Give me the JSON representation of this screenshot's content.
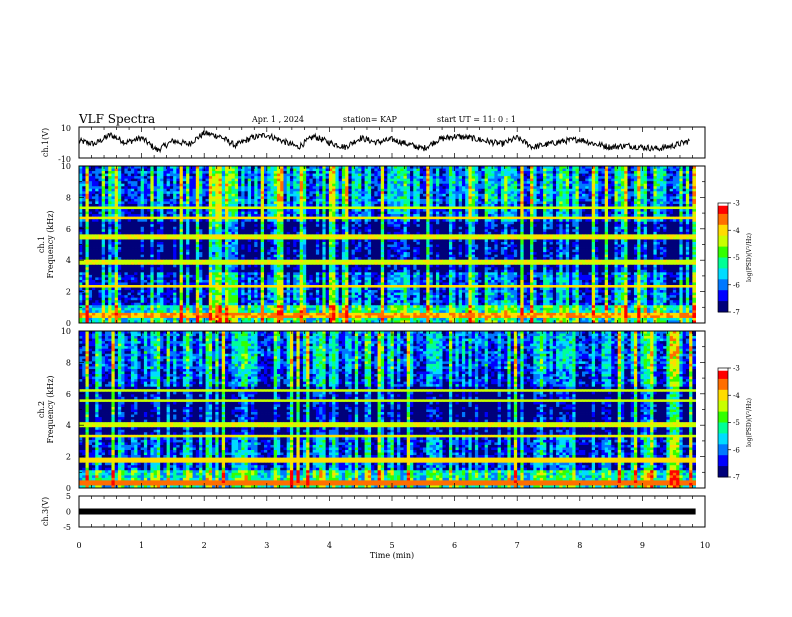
{
  "header": {
    "title": "VLF Spectra",
    "date": "Apr. 1  , 2024",
    "station": "station= KAP",
    "start": "start  UT =   11: 0  : 1"
  },
  "colors": {
    "line": "#000000",
    "colormap": [
      "#00007a",
      "#0000ff",
      "#0078ff",
      "#00dcff",
      "#00ff96",
      "#32ff00",
      "#c8ff00",
      "#ffdc00",
      "#ff6e00",
      "#ff0000",
      "#ffffff"
    ]
  },
  "chart_data": [
    {
      "type": "line",
      "name": "ch1-waveform",
      "ylabel": "ch.1(V)",
      "ylim": [
        -10,
        10
      ],
      "yticks": [
        "10",
        "-10"
      ],
      "xlim": [
        0,
        10
      ],
      "x": [
        0,
        0.25,
        0.5,
        0.75,
        1,
        1.25,
        1.5,
        1.75,
        2,
        2.25,
        2.5,
        2.75,
        3,
        3.25,
        3.5,
        3.75,
        4,
        4.25,
        4.5,
        4.75,
        5,
        5.25,
        5.5,
        5.75,
        6,
        6.25,
        6.5,
        6.75,
        7,
        7.25,
        7.5,
        7.75,
        8,
        8.25,
        8.5,
        8.75,
        9,
        9.25,
        9.5,
        9.75
      ],
      "values": [
        1,
        -1,
        5,
        0,
        3,
        -5,
        1,
        -1,
        6,
        4,
        -2,
        3,
        5,
        1,
        -3,
        4,
        0,
        -3,
        3,
        0,
        2,
        -1,
        -4,
        2,
        4,
        3,
        1,
        -1,
        3,
        -3,
        -1,
        1,
        2,
        -1,
        -3,
        -2,
        -3,
        -4,
        -2,
        1
      ]
    },
    {
      "type": "heatmap",
      "name": "ch1-spectrogram",
      "ylabel": "ch.1\nFrequency  (kHz)",
      "xlim": [
        0,
        10
      ],
      "ylim": [
        0,
        10
      ],
      "yticks": [
        "0",
        "2",
        "4",
        "6",
        "8",
        "10"
      ],
      "colorbar": {
        "label": "log(PSD)(V²/Hz)",
        "range": [
          -7,
          -3
        ],
        "ticks": [
          "-3",
          "-4",
          "-5",
          "-6",
          "-7"
        ]
      },
      "freq_bands_khz": [
        0.5,
        2.3,
        3.9,
        5.5,
        6.7,
        7.3
      ],
      "band_levels": [
        -3.8,
        -4.0,
        -4.3,
        -4.2,
        -4.1,
        -4.4
      ]
    },
    {
      "type": "heatmap",
      "name": "ch2-spectrogram",
      "ylabel": "ch.2\nFrequency  (kHz)",
      "xlim": [
        0,
        10
      ],
      "ylim": [
        0,
        10
      ],
      "yticks": [
        "0",
        "2",
        "4",
        "6",
        "8",
        "10"
      ],
      "colorbar": {
        "label": "log(PSD)(V²/Hz)",
        "range": [
          -7,
          -3
        ],
        "ticks": [
          "-3",
          "-4",
          "-5",
          "-6",
          "-7"
        ]
      },
      "freq_bands_khz": [
        0.3,
        1.8,
        3.3,
        4.0,
        5.6,
        6.2
      ],
      "band_levels": [
        -3.6,
        -4.0,
        -4.2,
        -4.3,
        -4.4,
        -4.4
      ]
    },
    {
      "type": "line",
      "name": "ch3-waveform",
      "ylabel": "ch.3(V)",
      "ylim": [
        -5,
        5
      ],
      "yticks": [
        "5",
        "0",
        "-5"
      ],
      "xlim": [
        0,
        10
      ],
      "x": [
        0,
        9.85
      ],
      "values": [
        0,
        0
      ],
      "xlabel": "Time  (min)",
      "xticks": [
        "0",
        "1",
        "2",
        "3",
        "4",
        "5",
        "6",
        "7",
        "8",
        "9",
        "10"
      ]
    }
  ]
}
